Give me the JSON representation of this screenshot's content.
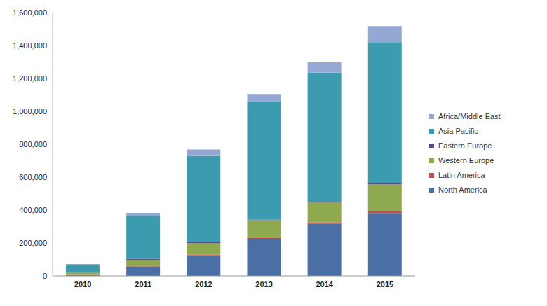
{
  "chart_data": {
    "type": "bar",
    "stacked": true,
    "grid": false,
    "legend": "right",
    "categories": [
      "2010",
      "2011",
      "2012",
      "2013",
      "2014",
      "2015"
    ],
    "ylim": [
      0,
      1600000
    ],
    "yticks": [
      0,
      {
        "value": 200000,
        "label": "200,000"
      },
      {
        "value": 400000,
        "label": "400,000"
      },
      {
        "value": 600000,
        "label": "600,000"
      },
      {
        "value": 800000,
        "label": "800,000"
      },
      {
        "value": 1000000,
        "label": "1,000,000"
      },
      {
        "value": 1200000,
        "label": "1,200,000"
      },
      {
        "value": 1400000,
        "label": "1,400,000"
      },
      {
        "value": 1600000,
        "label": "1,600,000"
      }
    ],
    "series": [
      {
        "name": "North America",
        "color": "#4a6fa5",
        "values": [
          5000,
          55000,
          125000,
          225000,
          318000,
          382000
        ]
      },
      {
        "name": "Latin America",
        "color": "#c0504d",
        "values": [
          1000,
          3000,
          5000,
          8000,
          8000,
          10000
        ]
      },
      {
        "name": "Western Europe",
        "color": "#8faa4e",
        "values": [
          15000,
          40000,
          70000,
          105000,
          122000,
          165000
        ]
      },
      {
        "name": "Eastern Europe",
        "color": "#5b4a8a",
        "values": [
          1000,
          5000,
          5000,
          5000,
          6000,
          7000
        ]
      },
      {
        "name": "Asia Pacific",
        "color": "#3d9bb0",
        "values": [
          45000,
          262000,
          525000,
          715000,
          781000,
          856000
        ]
      },
      {
        "name": "Africa/Middle East",
        "color": "#95a8d4",
        "values": [
          5000,
          18000,
          38000,
          47000,
          63000,
          98000
        ]
      }
    ]
  }
}
